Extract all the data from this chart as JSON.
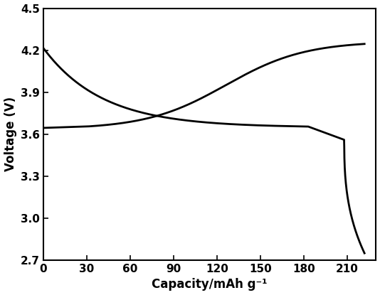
{
  "xlabel": "Capacity/mAh g⁻¹",
  "ylabel": "Voltage (V)",
  "xlim": [
    0,
    230
  ],
  "ylim": [
    2.7,
    4.5
  ],
  "xticks": [
    0,
    30,
    60,
    90,
    120,
    150,
    180,
    210
  ],
  "yticks": [
    2.7,
    3.0,
    3.3,
    3.6,
    3.9,
    4.2,
    4.5
  ],
  "line_color": "#000000",
  "line_width": 2.0,
  "background_color": "#ffffff",
  "discharge": {
    "x_max": 222,
    "v_start": 4.215,
    "v_plateau": 3.655,
    "plateau_start": 5,
    "plateau_end": 183,
    "knee_x": 208,
    "knee_v": 3.56,
    "v_end": 2.75
  },
  "charge": {
    "x_max": 222,
    "v_start": 3.645,
    "v_flat_end_x": 30,
    "v_flat_end_v": 3.655,
    "v_mid_x": 115,
    "v_mid_v": 3.875,
    "v_end": 4.245
  }
}
